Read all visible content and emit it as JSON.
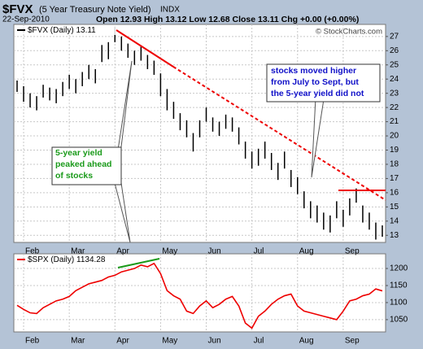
{
  "header": {
    "symbol": "$FVX",
    "name": "(5 Year Treasury Note Yield)",
    "exchange": "INDX",
    "date": "22-Sep-2010",
    "quote": "Open 12.93 High 13.12 Low 12.68 Close 13.11 Chg +0.00 (+0.00%)",
    "credit": "© StockCharts.com"
  },
  "annotations": {
    "peak": [
      "5-year yield",
      "peaked ahead",
      "of stocks"
    ],
    "divergence": [
      "stocks moved higher",
      "from July to Sept, but",
      "the 5-year yield did not"
    ]
  },
  "chart_data": [
    {
      "type": "range",
      "title": "$FVX (Daily) 13.11",
      "color": "#000000",
      "categories": [
        null,
        "Feb",
        null,
        null,
        null,
        null,
        null,
        null,
        "Mar",
        null,
        null,
        null,
        null,
        null,
        null,
        "Apr",
        null,
        null,
        null,
        null,
        null,
        null,
        "May",
        null,
        null,
        null,
        null,
        null,
        null,
        "Jun",
        null,
        null,
        null,
        null,
        null,
        null,
        "Jul",
        null,
        null,
        null,
        null,
        null,
        null,
        "Aug",
        null,
        null,
        null,
        null,
        null,
        null,
        "Sep",
        null,
        null,
        null,
        null,
        null,
        null
      ],
      "high": [
        23.9,
        23.5,
        23.0,
        22.8,
        23.6,
        23.4,
        23.3,
        23.8,
        24.3,
        24.0,
        24.5,
        25.0,
        24.7,
        26.4,
        26.6,
        27.7,
        27.0,
        26.5,
        26.0,
        26.3,
        25.7,
        25.3,
        24.4,
        23.3,
        22.4,
        21.6,
        21.1,
        20.2,
        21.1,
        22.0,
        21.3,
        21.0,
        21.5,
        21.3,
        20.6,
        19.6,
        18.9,
        19.1,
        19.6,
        18.8,
        18.1,
        18.9,
        17.6,
        17.1,
        16.1,
        15.4,
        15.1,
        14.6,
        14.4,
        15.4,
        14.8,
        15.6,
        16.3,
        15.1,
        14.6,
        13.9,
        13.7
      ],
      "low": [
        23.1,
        22.4,
        22.0,
        21.8,
        22.7,
        22.5,
        22.3,
        22.8,
        23.3,
        23.0,
        23.5,
        24.0,
        23.7,
        25.2,
        25.4,
        26.6,
        26.0,
        25.5,
        25.0,
        25.3,
        24.7,
        24.3,
        22.8,
        21.8,
        21.2,
        20.4,
        19.9,
        18.9,
        19.9,
        21.0,
        20.3,
        20.0,
        20.5,
        20.3,
        19.4,
        18.4,
        17.7,
        17.9,
        18.4,
        17.6,
        16.9,
        17.7,
        16.4,
        15.9,
        14.9,
        14.2,
        13.9,
        13.4,
        13.2,
        14.2,
        13.6,
        14.4,
        15.3,
        13.9,
        13.4,
        12.7,
        12.9
      ],
      "ylim": [
        12.5,
        27.85
      ],
      "yticks": [
        13,
        14,
        15,
        16,
        17,
        18,
        19,
        20,
        21,
        22,
        23,
        24,
        25,
        26,
        27
      ],
      "grid": true
    },
    {
      "type": "line",
      "title": "$SPX (Daily) 1134.28",
      "color": "#ee0000",
      "values": [
        1092,
        1080,
        1070,
        1068,
        1085,
        1095,
        1105,
        1110,
        1118,
        1135,
        1145,
        1155,
        1160,
        1165,
        1175,
        1180,
        1190,
        1195,
        1200,
        1210,
        1205,
        1215,
        1185,
        1135,
        1120,
        1110,
        1075,
        1068,
        1090,
        1105,
        1085,
        1095,
        1110,
        1118,
        1090,
        1040,
        1025,
        1060,
        1075,
        1095,
        1110,
        1120,
        1125,
        1090,
        1075,
        1070,
        1065,
        1060,
        1055,
        1050,
        1075,
        1105,
        1110,
        1120,
        1125,
        1140,
        1134.28
      ],
      "ylim": [
        1014,
        1243
      ],
      "yticks": [
        1050,
        1100,
        1150,
        1200
      ],
      "grid": true
    }
  ]
}
